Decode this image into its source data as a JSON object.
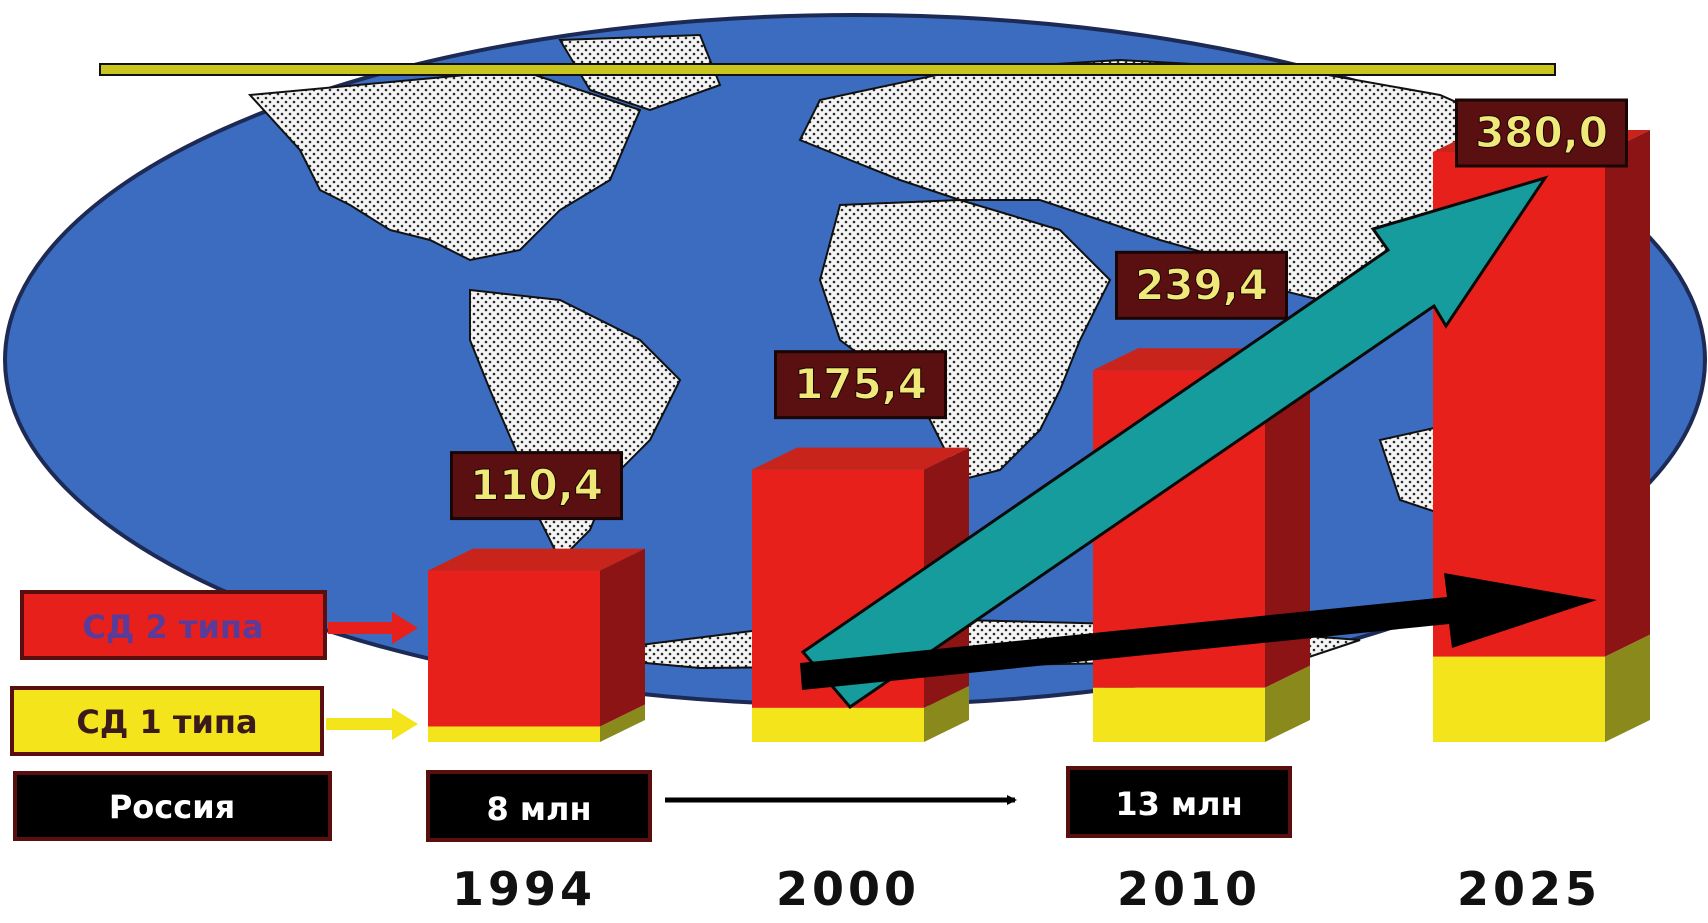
{
  "chart_data": {
    "type": "bar",
    "stacked": true,
    "title": "",
    "xlabel": "",
    "ylabel": "",
    "categories": [
      "1994",
      "2000",
      "2010",
      "2025"
    ],
    "series": [
      {
        "name": "СД 1 типа",
        "values": [
          10,
          22,
          35,
          55
        ]
      },
      {
        "name": "СД 2 типа",
        "values": [
          100.4,
          153.4,
          204.4,
          325.0
        ]
      }
    ],
    "totals": [
      "110,4",
      "175,4",
      "239,4",
      "380,0"
    ],
    "total_values": [
      110.4,
      175.4,
      239.4,
      380.0
    ],
    "ylim": [
      0,
      380
    ],
    "legend_position": "left",
    "russia": {
      "label": "Россия",
      "from": "8 млн",
      "to": "13 млн"
    },
    "colors": {
      "type2": "#e8201c",
      "type2_side": "#8c1414",
      "type1": "#f4e41c",
      "type1_side": "#8a8a1c",
      "ocean": "#3b6cbf",
      "land": "#f2f2f2",
      "label_box": "#5a1010",
      "label_text": "#f0e97a",
      "trend_arrow": "#169c9c",
      "top_line": "#c9c41e"
    },
    "background": "world-map",
    "annotations": [
      "trend-arrow-teal",
      "trend-arrow-black"
    ]
  }
}
